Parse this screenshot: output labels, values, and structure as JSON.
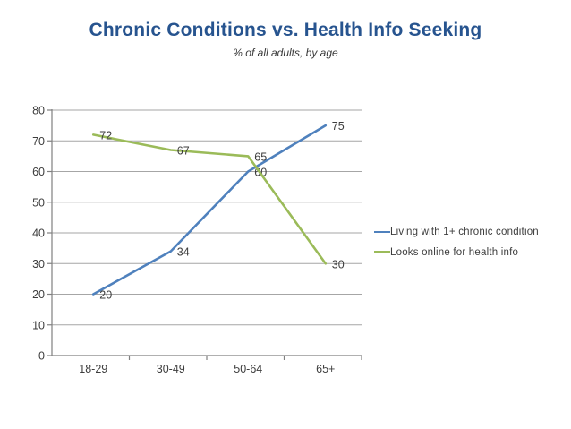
{
  "chart_data": {
    "type": "line",
    "title": "Chronic Conditions vs. Health Info Seeking",
    "subtitle": "% of all adults, by age",
    "categories": [
      "18-29",
      "30-49",
      "50-64",
      "65+"
    ],
    "series": [
      {
        "name": "Living with 1+ chronic condition",
        "color": "#4f81bd",
        "values": [
          20,
          34,
          60,
          75
        ]
      },
      {
        "name": "Looks online for health info",
        "color": "#9bbb59",
        "values": [
          72,
          67,
          65,
          30
        ]
      }
    ],
    "ylim": [
      0,
      80
    ],
    "ytick_step": 10,
    "ytick_labels": [
      "0",
      "10",
      "20",
      "30",
      "40",
      "50",
      "60",
      "70",
      "80"
    ],
    "grid": true,
    "data_labels": true,
    "legend_position": "right",
    "title_color": "#27548f",
    "axis_color": "#808080",
    "grid_color": "#a6a6a6",
    "label_color": "#3d3d3d"
  }
}
